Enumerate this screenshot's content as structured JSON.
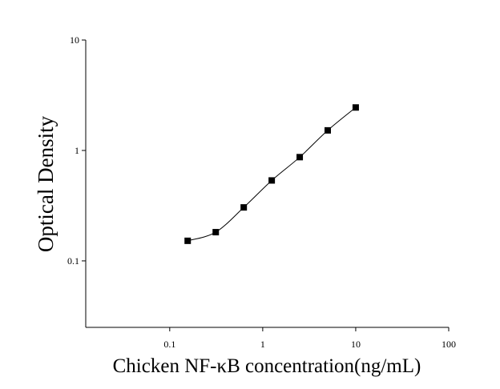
{
  "chart_data": {
    "type": "scatter",
    "x_label": "Chicken NF-κB concentration(ng/mL)",
    "y_label": "Optical Density",
    "x": [
      0.156,
      0.3125,
      0.625,
      1.25,
      2.5,
      5,
      10
    ],
    "series": [
      {
        "color": "#000000",
        "values": [
          0.152,
          0.182,
          0.305,
          0.535,
          0.87,
          1.52,
          2.45
        ]
      }
    ],
    "xscale": "log",
    "yscale": "log",
    "xlim": [
      0.0125,
      100
    ],
    "ylim": [
      0.025,
      10
    ],
    "xticks": [
      0.1,
      1,
      10,
      100
    ],
    "yticks": [
      0.1,
      1,
      10
    ],
    "grid": false
  }
}
